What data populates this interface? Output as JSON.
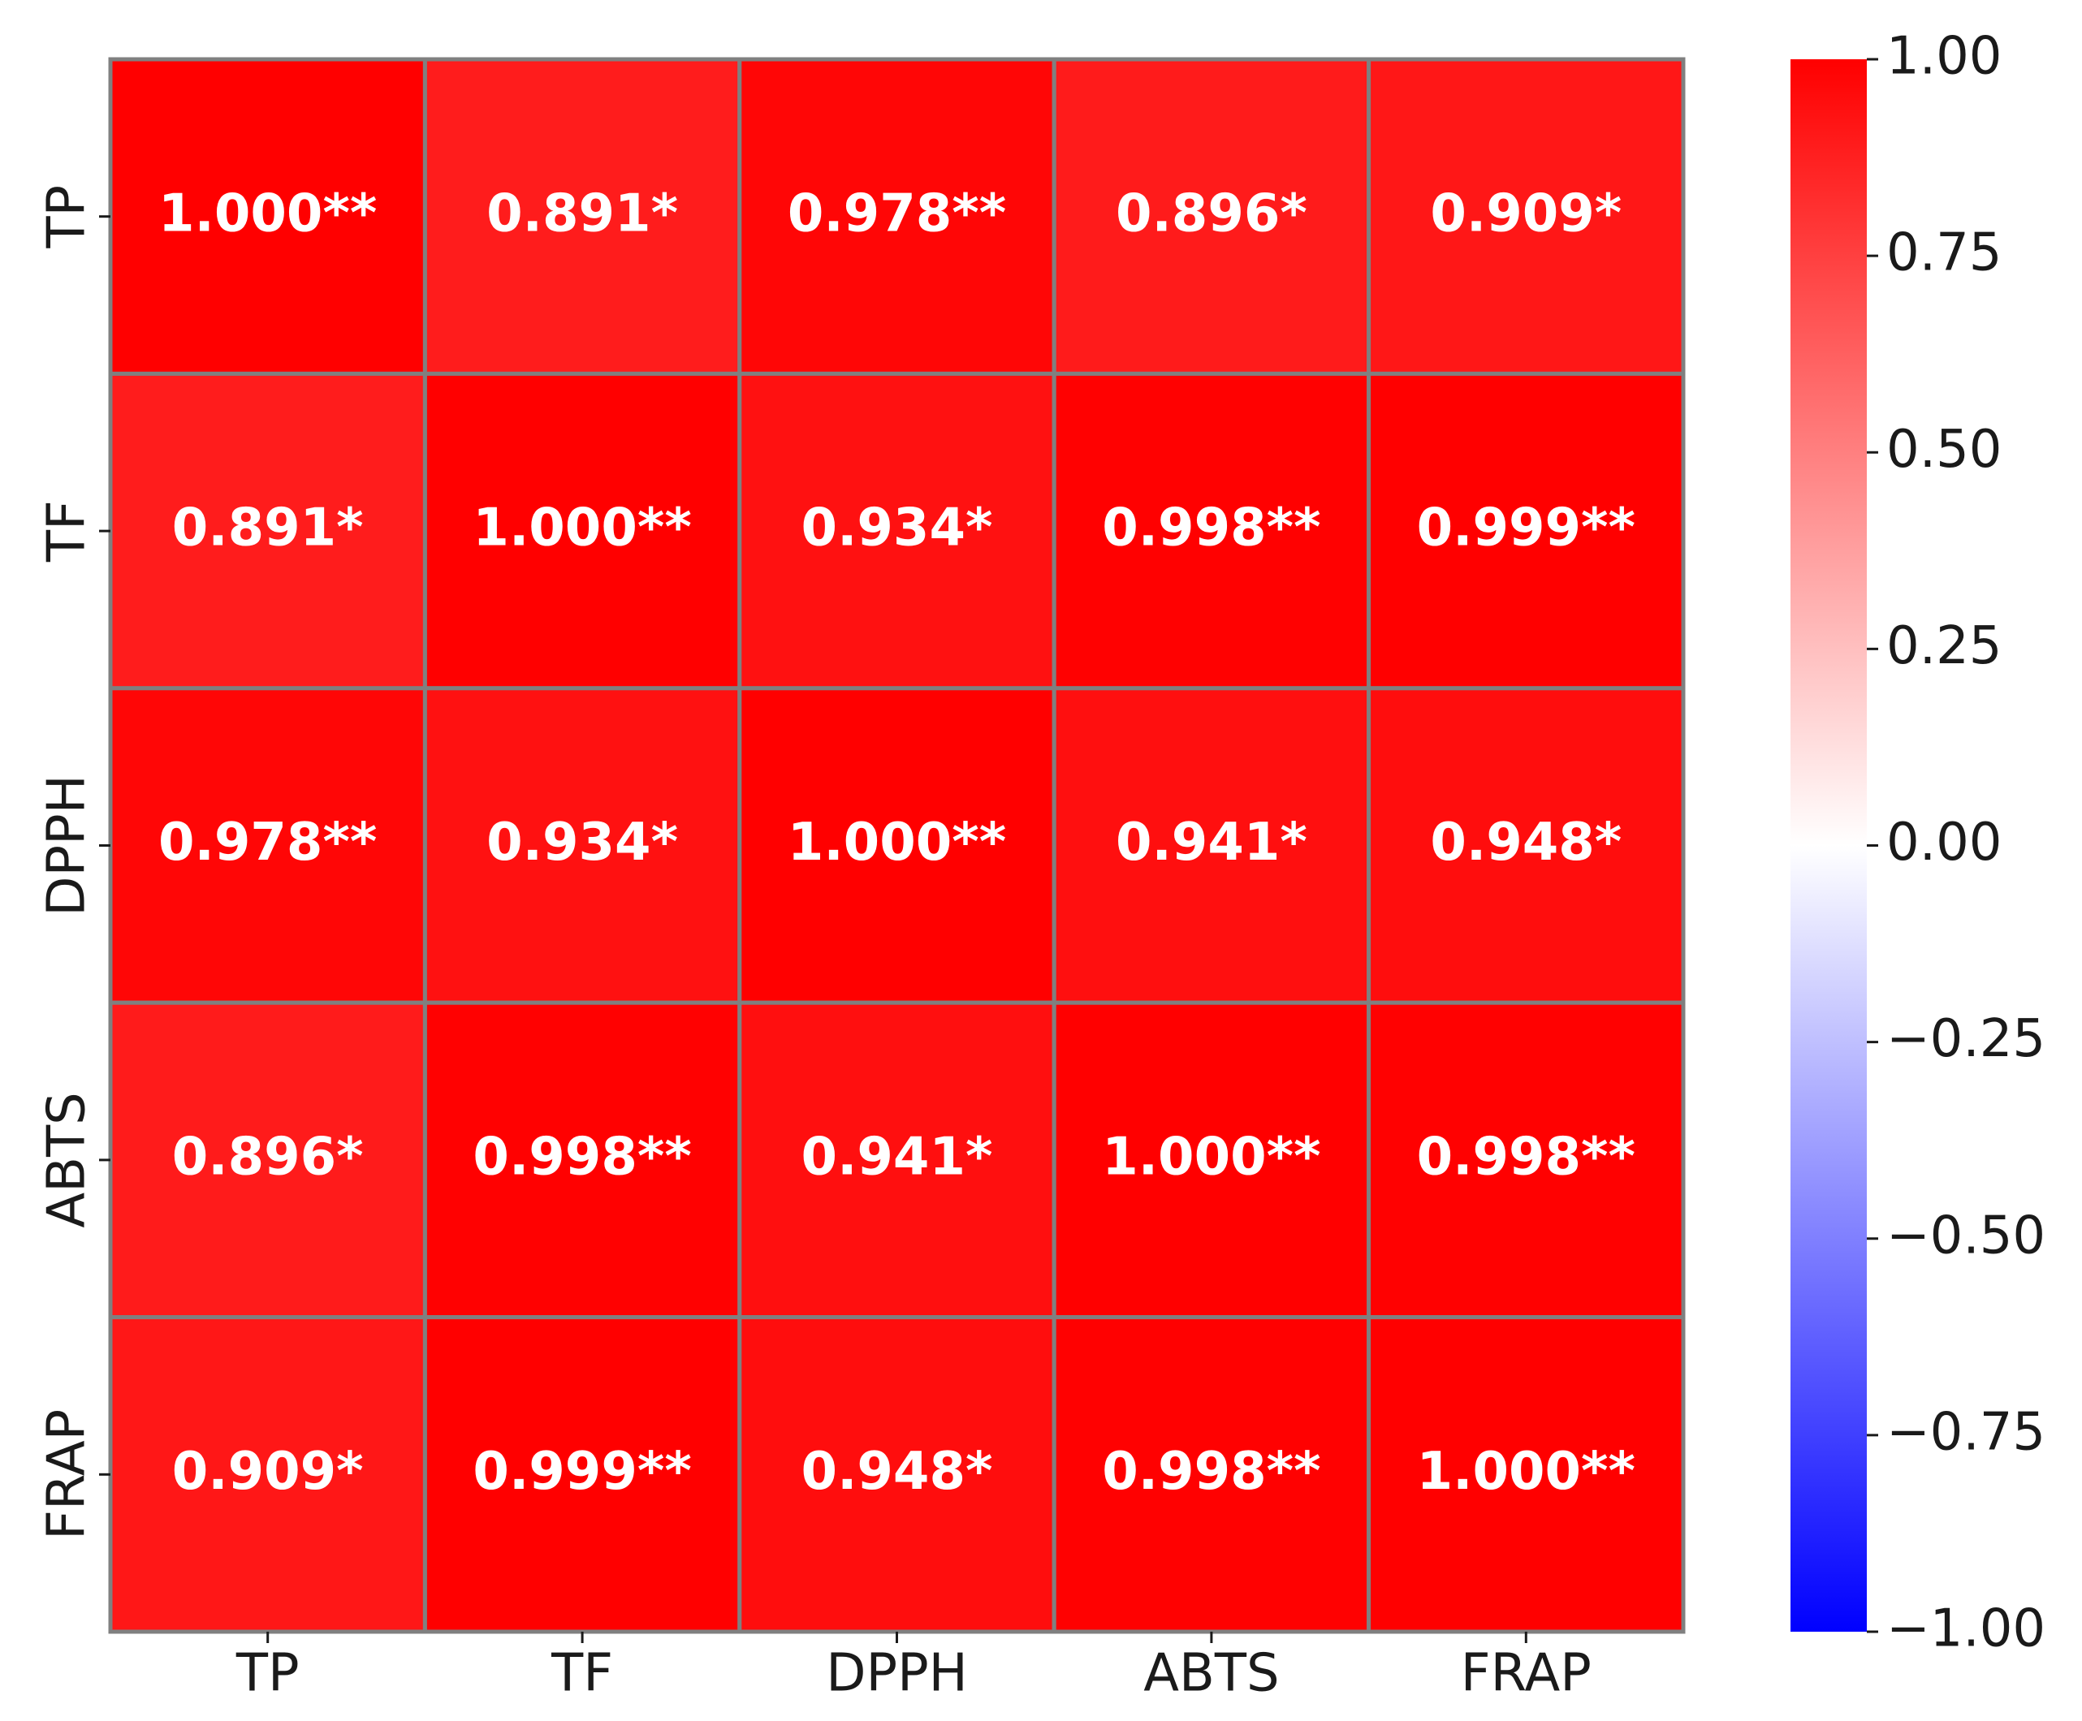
{
  "chart_data": {
    "type": "heatmap",
    "x_categories": [
      "TP",
      "TF",
      "DPPH",
      "ABTS",
      "FRAP"
    ],
    "y_categories": [
      "TP",
      "TF",
      "DPPH",
      "ABTS",
      "FRAP"
    ],
    "values": [
      [
        1.0,
        0.891,
        0.978,
        0.896,
        0.909
      ],
      [
        0.891,
        1.0,
        0.934,
        0.998,
        0.999
      ],
      [
        0.978,
        0.934,
        1.0,
        0.941,
        0.948
      ],
      [
        0.896,
        0.998,
        0.941,
        1.0,
        0.998
      ],
      [
        0.909,
        0.999,
        0.948,
        0.998,
        1.0
      ]
    ],
    "value_labels": [
      [
        "1.000**",
        "0.891*",
        "0.978**",
        "0.896*",
        "0.909*"
      ],
      [
        "0.891*",
        "1.000**",
        "0.934*",
        "0.998**",
        "0.999**"
      ],
      [
        "0.978**",
        "0.934*",
        "1.000**",
        "0.941*",
        "0.948*"
      ],
      [
        "0.896*",
        "0.998**",
        "0.941*",
        "1.000**",
        "0.998**"
      ],
      [
        "0.909*",
        "0.999**",
        "0.948*",
        "0.998**",
        "1.000**"
      ]
    ],
    "colormap": [
      "#0000ff",
      "#ffffff",
      "#ff0000"
    ],
    "clim": [
      -1,
      1
    ],
    "cticks": [
      {
        "value": 1,
        "label": "1.00"
      },
      {
        "value": 0.75,
        "label": "0.75"
      },
      {
        "value": 0.5,
        "label": "0.50"
      },
      {
        "value": 0.25,
        "label": "0.25"
      },
      {
        "value": 0,
        "label": "0.00"
      },
      {
        "value": -0.25,
        "label": "−0.25"
      },
      {
        "value": -0.5,
        "label": "−0.50"
      },
      {
        "value": -0.75,
        "label": "−0.75"
      },
      {
        "value": -1,
        "label": "−1.00"
      }
    ]
  }
}
